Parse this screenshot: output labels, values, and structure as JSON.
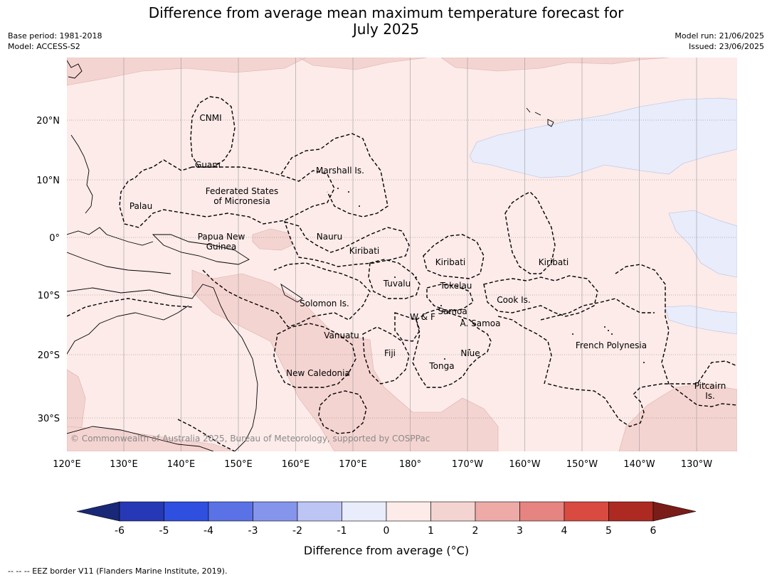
{
  "title": "Difference from average mean maximum temperature forecast for\nJuly 2025",
  "meta_left": {
    "base_period": "Base period: 1981-2018",
    "model": "Model: ACCESS-S2"
  },
  "meta_right": {
    "model_run": "Model run: 21/06/2025",
    "issued": "Issued: 23/06/2025"
  },
  "map": {
    "lat_ticks": [
      "20°N",
      "10°N",
      "0°",
      "10°S",
      "20°S",
      "30°S"
    ],
    "lon_ticks": [
      "120°E",
      "130°E",
      "140°E",
      "150°E",
      "160°E",
      "170°E",
      "180°",
      "170°W",
      "160°W",
      "150°W",
      "140°W",
      "130°W"
    ],
    "regions": [
      "CNMI",
      "Guam",
      "Marshall Is.",
      "Federated States\nof Micronesia",
      "Palau",
      "Papua New\nGuinea",
      "Nauru",
      "Kiribati",
      "Kiribati",
      "Kiribati",
      "Tuvalu",
      "Tokelau",
      "Cook Is.",
      "Solomon Is.",
      "W & F",
      "Samoa",
      "A. Samoa",
      "Vanuatu",
      "Fiji",
      "Niue",
      "French Polynesia",
      "Tonga",
      "New Caledonia",
      "Pitcairn\nIs."
    ],
    "copyright": "© Commonwealth of Australia 2025, Bureau of Meteorology, supported by COSPPac",
    "colors": {
      "anomaly_0_1": "#fcebe9",
      "anomaly_1_2": "#f4d4d1",
      "anomaly_minus1_0": "#e8ecfb",
      "land_outline": "#000000",
      "eez_border": "#000000"
    }
  },
  "colorbar": {
    "ticks": [
      "-6",
      "-5",
      "-4",
      "-3",
      "-2",
      "-1",
      "0",
      "1",
      "2",
      "3",
      "4",
      "5",
      "6"
    ],
    "colors": [
      "#1a2878",
      "#2638b5",
      "#2f4fe0",
      "#5a72e6",
      "#8595ec",
      "#bcc5f4",
      "#e8ecfb",
      "#fcebe9",
      "#f4d4d1",
      "#edaaa6",
      "#e58480",
      "#d94a40",
      "#ad2a22",
      "#7a1c18"
    ],
    "label": "Difference from average (°C)"
  },
  "footer": "--  --  -- EEZ border V11 (Flanders Marine Institute, 2019)."
}
